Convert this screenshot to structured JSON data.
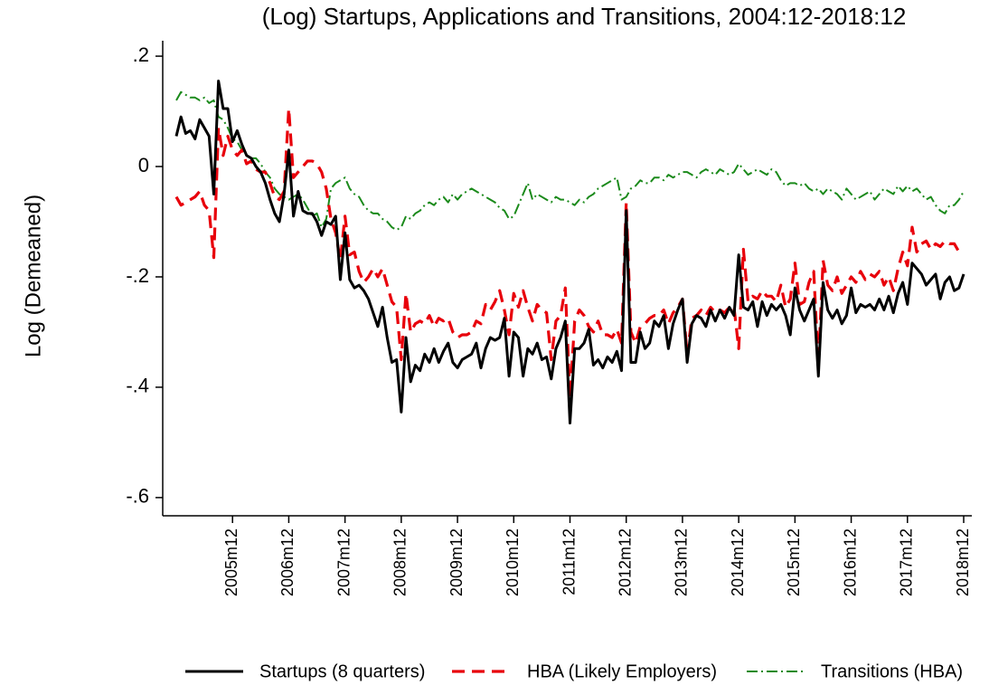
{
  "chart_data": {
    "type": "line",
    "title": "(Log) Startups, Applications and Transitions, 2004:12-2018:12",
    "y_label": "Log (Demeaned)",
    "x": [
      "2004m12",
      "2005m1",
      "2005m2",
      "2005m3",
      "2005m4",
      "2005m5",
      "2005m6",
      "2005m7",
      "2005m8",
      "2005m9",
      "2005m10",
      "2005m11",
      "2005m12",
      "2006m1",
      "2006m2",
      "2006m3",
      "2006m4",
      "2006m5",
      "2006m6",
      "2006m7",
      "2006m8",
      "2006m9",
      "2006m10",
      "2006m11",
      "2006m12",
      "2007m1",
      "2007m2",
      "2007m3",
      "2007m4",
      "2007m5",
      "2007m6",
      "2007m7",
      "2007m8",
      "2007m9",
      "2007m10",
      "2007m11",
      "2007m12",
      "2008m1",
      "2008m2",
      "2008m3",
      "2008m4",
      "2008m5",
      "2008m6",
      "2008m7",
      "2008m8",
      "2008m9",
      "2008m10",
      "2008m11",
      "2008m12",
      "2009m1",
      "2009m2",
      "2009m3",
      "2009m4",
      "2009m5",
      "2009m6",
      "2009m7",
      "2009m8",
      "2009m9",
      "2009m10",
      "2009m11",
      "2009m12",
      "2010m1",
      "2010m2",
      "2010m3",
      "2010m4",
      "2010m5",
      "2010m6",
      "2010m7",
      "2010m8",
      "2010m9",
      "2010m10",
      "2010m11",
      "2010m12",
      "2011m1",
      "2011m2",
      "2011m3",
      "2011m4",
      "2011m5",
      "2011m6",
      "2011m7",
      "2011m8",
      "2011m9",
      "2011m10",
      "2011m11",
      "2011m12",
      "2012m1",
      "2012m2",
      "2012m3",
      "2012m4",
      "2012m5",
      "2012m6",
      "2012m7",
      "2012m8",
      "2012m9",
      "2012m10",
      "2012m11",
      "2012m12",
      "2013m1",
      "2013m2",
      "2013m3",
      "2013m4",
      "2013m5",
      "2013m6",
      "2013m7",
      "2013m8",
      "2013m9",
      "2013m10",
      "2013m11",
      "2013m12",
      "2014m1",
      "2014m2",
      "2014m3",
      "2014m4",
      "2014m5",
      "2014m6",
      "2014m7",
      "2014m8",
      "2014m9",
      "2014m10",
      "2014m11",
      "2014m12",
      "2015m1",
      "2015m2",
      "2015m3",
      "2015m4",
      "2015m5",
      "2015m6",
      "2015m7",
      "2015m8",
      "2015m9",
      "2015m10",
      "2015m11",
      "2015m12",
      "2016m1",
      "2016m2",
      "2016m3",
      "2016m4",
      "2016m5",
      "2016m6",
      "2016m7",
      "2016m8",
      "2016m9",
      "2016m10",
      "2016m11",
      "2016m12",
      "2017m1",
      "2017m2",
      "2017m3",
      "2017m4",
      "2017m5",
      "2017m6",
      "2017m7",
      "2017m8",
      "2017m9",
      "2017m10",
      "2017m11",
      "2017m12",
      "2018m1",
      "2018m2",
      "2018m3",
      "2018m4",
      "2018m5",
      "2018m6",
      "2018m7",
      "2018m8",
      "2018m9",
      "2018m10",
      "2018m11",
      "2018m12"
    ],
    "xticks": [
      "2005m12",
      "2006m12",
      "2007m12",
      "2008m12",
      "2009m12",
      "2010m12",
      "2011m12",
      "2012m12",
      "2013m12",
      "2014m12",
      "2015m12",
      "2016m12",
      "2017m12",
      "2018m12"
    ],
    "ylim": [
      -0.633,
      0.228
    ],
    "yticks": [
      {
        "value": 0.2,
        "label": ".2"
      },
      0,
      {
        "value": -0.2,
        "label": "-.2"
      },
      {
        "value": -0.4,
        "label": "-.4"
      },
      {
        "value": -0.6,
        "label": "-.6"
      }
    ],
    "series": [
      {
        "name": "Startups (8 quarters)",
        "color": "#000000",
        "dash": "solid",
        "values": [
          0.055,
          0.09,
          0.06,
          0.065,
          0.05,
          0.085,
          0.07,
          0.055,
          -0.05,
          0.155,
          0.105,
          0.105,
          0.045,
          0.065,
          0.04,
          0.02,
          0.015,
          0,
          -0.01,
          -0.03,
          -0.06,
          -0.085,
          -0.1,
          -0.05,
          0.03,
          -0.09,
          -0.045,
          -0.08,
          -0.085,
          -0.085,
          -0.1,
          -0.125,
          -0.1,
          -0.105,
          -0.09,
          -0.205,
          -0.12,
          -0.205,
          -0.22,
          -0.215,
          -0.225,
          -0.24,
          -0.265,
          -0.29,
          -0.255,
          -0.31,
          -0.355,
          -0.35,
          -0.445,
          -0.31,
          -0.39,
          -0.36,
          -0.37,
          -0.34,
          -0.355,
          -0.33,
          -0.355,
          -0.335,
          -0.32,
          -0.355,
          -0.365,
          -0.35,
          -0.345,
          -0.34,
          -0.32,
          -0.365,
          -0.33,
          -0.31,
          -0.315,
          -0.31,
          -0.275,
          -0.38,
          -0.3,
          -0.31,
          -0.38,
          -0.33,
          -0.34,
          -0.32,
          -0.35,
          -0.345,
          -0.385,
          -0.33,
          -0.31,
          -0.28,
          -0.465,
          -0.33,
          -0.33,
          -0.32,
          -0.295,
          -0.36,
          -0.35,
          -0.365,
          -0.345,
          -0.355,
          -0.335,
          -0.37,
          -0.08,
          -0.355,
          -0.355,
          -0.3,
          -0.33,
          -0.32,
          -0.28,
          -0.29,
          -0.27,
          -0.33,
          -0.285,
          -0.26,
          -0.24,
          -0.355,
          -0.285,
          -0.27,
          -0.275,
          -0.29,
          -0.26,
          -0.28,
          -0.26,
          -0.275,
          -0.255,
          -0.27,
          -0.16,
          -0.255,
          -0.26,
          -0.245,
          -0.29,
          -0.245,
          -0.27,
          -0.25,
          -0.26,
          -0.25,
          -0.27,
          -0.305,
          -0.22,
          -0.26,
          -0.28,
          -0.26,
          -0.24,
          -0.38,
          -0.21,
          -0.26,
          -0.275,
          -0.26,
          -0.285,
          -0.27,
          -0.22,
          -0.265,
          -0.25,
          -0.255,
          -0.25,
          -0.26,
          -0.24,
          -0.26,
          -0.235,
          -0.265,
          -0.23,
          -0.21,
          -0.25,
          -0.175,
          -0.185,
          -0.195,
          -0.215,
          -0.205,
          -0.195,
          -0.24,
          -0.21,
          -0.2,
          -0.225,
          -0.22,
          -0.195
        ]
      },
      {
        "name": "HBA (Likely Employers)",
        "color": "#e8000b",
        "dash": "dash",
        "values": [
          -0.055,
          -0.07,
          -0.065,
          -0.06,
          -0.055,
          -0.045,
          -0.07,
          -0.08,
          -0.165,
          0.07,
          0.02,
          0.055,
          0.03,
          0.02,
          0.03,
          0.005,
          0.01,
          -0.005,
          -0.01,
          -0.01,
          -0.03,
          -0.055,
          -0.06,
          -0.045,
          0.105,
          -0.02,
          -0.01,
          0,
          0.01,
          0.01,
          0.005,
          -0.01,
          -0.04,
          -0.095,
          -0.12,
          -0.17,
          -0.09,
          -0.16,
          -0.155,
          -0.19,
          -0.21,
          -0.2,
          -0.185,
          -0.2,
          -0.185,
          -0.215,
          -0.245,
          -0.255,
          -0.35,
          -0.23,
          -0.3,
          -0.285,
          -0.28,
          -0.285,
          -0.27,
          -0.29,
          -0.275,
          -0.28,
          -0.275,
          -0.3,
          -0.31,
          -0.305,
          -0.305,
          -0.3,
          -0.28,
          -0.285,
          -0.25,
          -0.26,
          -0.245,
          -0.225,
          -0.26,
          -0.305,
          -0.23,
          -0.255,
          -0.225,
          -0.255,
          -0.28,
          -0.25,
          -0.26,
          -0.265,
          -0.35,
          -0.28,
          -0.27,
          -0.22,
          -0.42,
          -0.28,
          -0.26,
          -0.27,
          -0.29,
          -0.3,
          -0.28,
          -0.305,
          -0.305,
          -0.31,
          -0.295,
          -0.32,
          -0.065,
          -0.3,
          -0.32,
          -0.29,
          -0.285,
          -0.275,
          -0.27,
          -0.27,
          -0.26,
          -0.285,
          -0.265,
          -0.255,
          -0.24,
          -0.34,
          -0.275,
          -0.27,
          -0.26,
          -0.27,
          -0.255,
          -0.265,
          -0.26,
          -0.265,
          -0.255,
          -0.255,
          -0.33,
          -0.15,
          -0.245,
          -0.235,
          -0.24,
          -0.225,
          -0.235,
          -0.235,
          -0.245,
          -0.215,
          -0.255,
          -0.24,
          -0.175,
          -0.25,
          -0.245,
          -0.21,
          -0.19,
          -0.36,
          -0.17,
          -0.215,
          -0.225,
          -0.2,
          -0.23,
          -0.215,
          -0.2,
          -0.21,
          -0.19,
          -0.205,
          -0.195,
          -0.2,
          -0.19,
          -0.215,
          -0.2,
          -0.225,
          -0.185,
          -0.155,
          -0.18,
          -0.11,
          -0.155,
          -0.14,
          -0.135,
          -0.15,
          -0.14,
          -0.145,
          -0.135,
          -0.14,
          -0.14,
          -0.155,
          -0.155
        ]
      },
      {
        "name": "Transitions (HBA)",
        "color": "#1b8a1b",
        "dash": "dashdot",
        "values": [
          0.12,
          0.135,
          0.13,
          0.125,
          0.125,
          0.12,
          0.125,
          0.115,
          0.12,
          0.09,
          0.085,
          0.07,
          0.05,
          0.045,
          0.03,
          0.02,
          0.015,
          0.015,
          0.005,
          -0.01,
          -0.02,
          -0.04,
          -0.05,
          -0.055,
          -0.06,
          -0.055,
          -0.05,
          -0.06,
          -0.075,
          -0.09,
          -0.085,
          -0.11,
          -0.095,
          -0.04,
          -0.03,
          -0.025,
          -0.02,
          -0.04,
          -0.05,
          -0.055,
          -0.07,
          -0.08,
          -0.085,
          -0.085,
          -0.095,
          -0.1,
          -0.11,
          -0.115,
          -0.11,
          -0.09,
          -0.095,
          -0.085,
          -0.08,
          -0.07,
          -0.065,
          -0.07,
          -0.06,
          -0.055,
          -0.065,
          -0.05,
          -0.06,
          -0.05,
          -0.045,
          -0.04,
          -0.045,
          -0.05,
          -0.055,
          -0.06,
          -0.065,
          -0.075,
          -0.08,
          -0.095,
          -0.09,
          -0.07,
          -0.05,
          -0.03,
          -0.06,
          -0.05,
          -0.055,
          -0.06,
          -0.065,
          -0.055,
          -0.06,
          -0.06,
          -0.065,
          -0.07,
          -0.06,
          -0.065,
          -0.055,
          -0.05,
          -0.04,
          -0.035,
          -0.03,
          -0.025,
          -0.02,
          -0.06,
          -0.055,
          -0.04,
          -0.035,
          -0.025,
          -0.03,
          -0.03,
          -0.02,
          -0.02,
          -0.025,
          -0.015,
          -0.02,
          -0.015,
          -0.01,
          -0.01,
          -0.015,
          -0.02,
          -0.01,
          -0.005,
          -0.01,
          -0.015,
          -0.005,
          -0.01,
          -0.015,
          -0.01,
          0.005,
          -0.005,
          -0.015,
          -0.01,
          -0.005,
          -0.01,
          -0.015,
          -0.005,
          -0.01,
          -0.025,
          -0.035,
          -0.03,
          -0.03,
          -0.035,
          -0.03,
          -0.04,
          -0.045,
          -0.04,
          -0.05,
          -0.04,
          -0.045,
          -0.05,
          -0.06,
          -0.04,
          -0.05,
          -0.06,
          -0.055,
          -0.05,
          -0.045,
          -0.06,
          -0.05,
          -0.04,
          -0.045,
          -0.05,
          -0.035,
          -0.045,
          -0.035,
          -0.045,
          -0.04,
          -0.05,
          -0.06,
          -0.055,
          -0.07,
          -0.08,
          -0.085,
          -0.07,
          -0.07,
          -0.06,
          -0.045
        ]
      }
    ]
  }
}
